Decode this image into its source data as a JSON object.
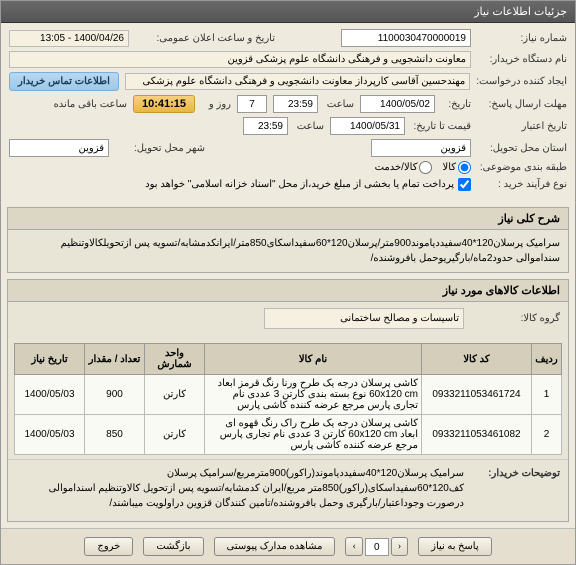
{
  "header": "جزئیات اطلاعات نیاز",
  "fields": {
    "need_no_label": "شماره نیاز:",
    "need_no": "1100030470000019",
    "announce_label": "تاریخ و ساعت اعلان عمومی:",
    "announce": "1400/04/26 - 13:05",
    "buyer_label": "نام دستگاه خریدار:",
    "buyer": "معاونت دانشجویی و فرهنگی دانشگاه علوم پزشکی قزوین",
    "requester_label": "ایجاد کننده درخواست:",
    "requester": "مهندحسین آقاسی کارپرداز معاونت دانشجویی و فرهنگی دانشگاه علوم پزشکی",
    "notice_box": "اطلاعات تماس خریدار",
    "send_deadline_label": "مهلت ارسال پاسخ:",
    "send_deadline_sub": "تاریخ:",
    "send_date": "1400/05/02",
    "send_hour_label": "ساعت",
    "send_hour": "23:59",
    "days_label": "روز و",
    "days": "7",
    "countdown": "10:41:15",
    "countdown_label": "ساعت باقی مانده",
    "validity_label": "تاریخ اعتبار",
    "validity_sub": "قیمت تا تاریخ:",
    "validity_date": "1400/05/31",
    "validity_hour": "23:59",
    "province_label": "استان محل تحویل:",
    "province": "قزوین",
    "city_label": "شهر محل تحویل:",
    "city": "قزوین",
    "delivery_type_label": "طبقه بندی موضوعی:",
    "delivery_opts": [
      "کالا",
      "کالا/خدمت"
    ],
    "purchase_type_label": "نوع فرآیند خرید :",
    "purchase_note": "پرداخت تمام یا بخشی از مبلغ خرید،از محل \"اسناد خزانه اسلامی\" خواهد بود"
  },
  "summary": {
    "title": "شرح کلی نیاز",
    "text": "سرامیک پرسلان120*40سفیددیاموند900متر/پرسلان120*60سفیداسکای850متر/ایرانکدمشابه/تسویه پس ازتحویلکالاوتنظیم سنداموالی حدود2ماه/بارگیریوحمل بافروشنده/"
  },
  "goods_section_title": "اطلاعات کالاهای مورد نیاز",
  "goods_group_label": "گروه کالا:",
  "goods_group": "تاسیسات و مصالح ساختمانی",
  "table": {
    "cols": [
      "ردیف",
      "کد کالا",
      "نام کالا",
      "واحد شمارش",
      "تعداد / مقدار",
      "تاریخ نیاز"
    ],
    "rows": [
      {
        "n": "1",
        "code": "0933211053461724",
        "name": "کاشی پرسلان درجه یک طرح ورنا رنگ قرمز ابعاد 60x120 cm نوع بسته بندی کارتن 3 عددی نام تجاری پارس مرجع عرضه کننده کاشی پارس",
        "unit": "کارتن",
        "qty": "900",
        "date": "1400/05/03"
      },
      {
        "n": "2",
        "code": "0933211053461082",
        "name": "کاشی پرسلان درجه یک طرح راک رنگ قهوه ای ابعاد 60x120 cm کارتن 3 عددی نام تجاری پارس مرجع عرضه کننده کاشی پارس",
        "unit": "کارتن",
        "qty": "850",
        "date": "1400/05/03"
      }
    ]
  },
  "buyer_notes": {
    "title": "توضیحات خریدار:",
    "text": "سرامیک پرسلان120*40سفیددیاموند(راکور)900مترمربع/سرامیک پرسلان کف120*60سفیداسکای(راکور)850متر مربع/ایران کدمشابه/تسویه پس ازتحویل کالاوتنظیم اسنداموالی درصورت وجوداعتبار/بارگیری وحمل بافروشنده/تامین کنندگان قزوین دراولویت میباشند/"
  },
  "footer": {
    "pager_label": "0",
    "btn_respond": "پاسخ به نیاز",
    "btn_docs": "مشاهده مدارک پیوستی",
    "btn_back": "بازگشت",
    "btn_exit": "خروج"
  }
}
